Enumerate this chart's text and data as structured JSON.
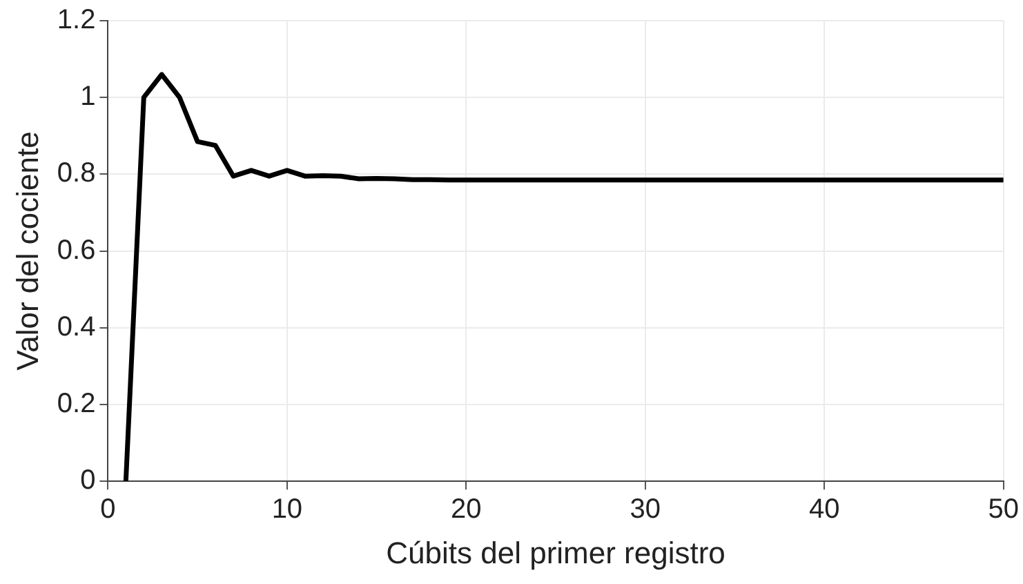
{
  "chart_data": {
    "type": "line",
    "xlabel": "Cúbits del primer registro",
    "ylabel": "Valor del cociente",
    "x": [
      1,
      2,
      3,
      4,
      5,
      6,
      7,
      8,
      9,
      10,
      11,
      12,
      13,
      14,
      15,
      16,
      17,
      18,
      19,
      20,
      30,
      40,
      50
    ],
    "series": [
      {
        "color": "#000000",
        "values": [
          0,
          1,
          1.06,
          1,
          0.885,
          0.875,
          0.795,
          0.81,
          0.795,
          0.81,
          0.795,
          0.796,
          0.795,
          0.788,
          0.789,
          0.788,
          0.786,
          0.786,
          0.785,
          0.785,
          0.785,
          0.785,
          0.785
        ]
      }
    ],
    "xlim": [
      0,
      50
    ],
    "xticks": [
      0,
      10,
      20,
      30,
      40,
      50
    ],
    "ylim": [
      0,
      1.2
    ],
    "yticks": [
      0,
      0.2,
      0.4,
      0.6,
      0.8,
      1,
      1.2
    ],
    "grid": true,
    "legend": false,
    "marker": "none",
    "line_style": "solid"
  }
}
